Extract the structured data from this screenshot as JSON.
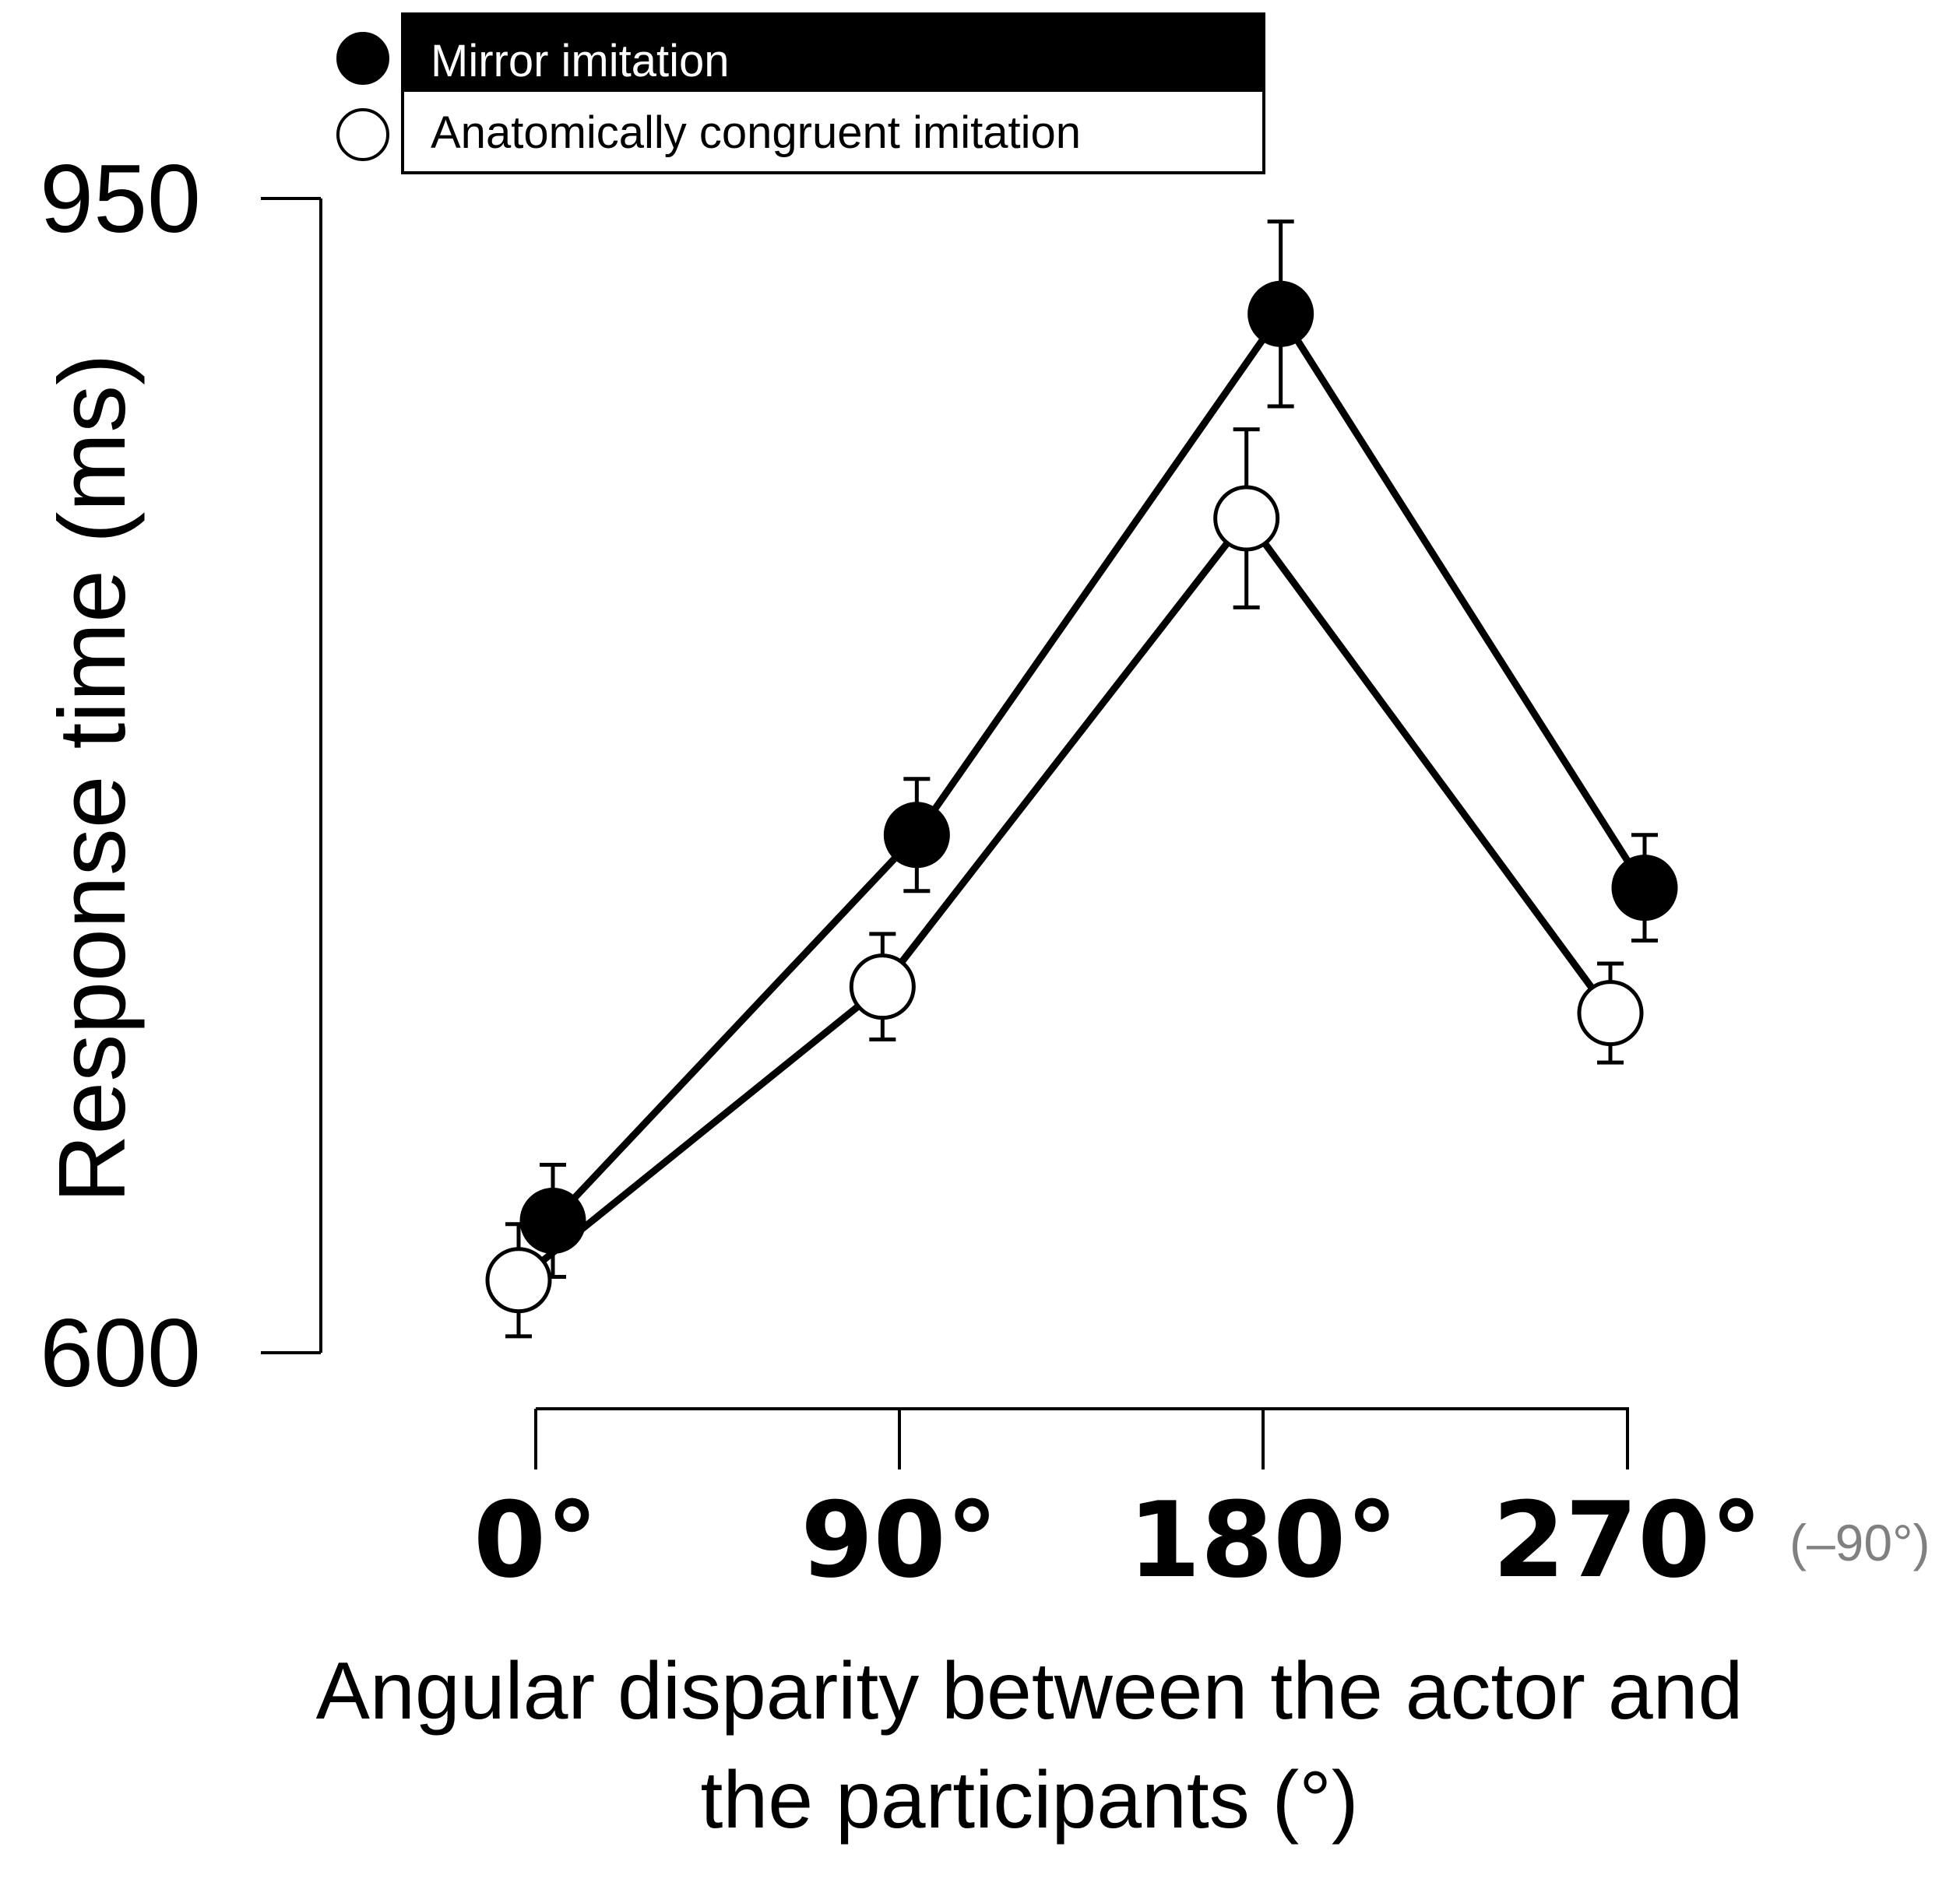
{
  "chart_data": {
    "type": "line",
    "title": "",
    "categories": [
      "0°",
      "90°",
      "180°",
      "270°"
    ],
    "category_note": "(–90°)",
    "x_values": [
      0,
      90,
      180,
      270
    ],
    "ylabel": "Response time (ms)",
    "xlabel_line1": "Angular disparity between the actor and",
    "xlabel_line2": "the participants (°)",
    "ylim": [
      600,
      950
    ],
    "yticks": [
      "950",
      "600"
    ],
    "grid": false,
    "legend_position": "top",
    "series": [
      {
        "name": "Mirror imitation",
        "marker": "filled",
        "color": "#000000",
        "x": [
          0,
          90,
          180,
          270
        ],
        "values": [
          640,
          757,
          915,
          741
        ],
        "error": [
          17,
          17,
          28,
          16
        ]
      },
      {
        "name": "Anatomically congruent imitation",
        "marker": "open",
        "color": "#000000",
        "x": [
          0,
          90,
          180,
          270
        ],
        "values": [
          622,
          711,
          853,
          703
        ],
        "error": [
          17,
          16,
          27,
          15
        ]
      }
    ]
  }
}
